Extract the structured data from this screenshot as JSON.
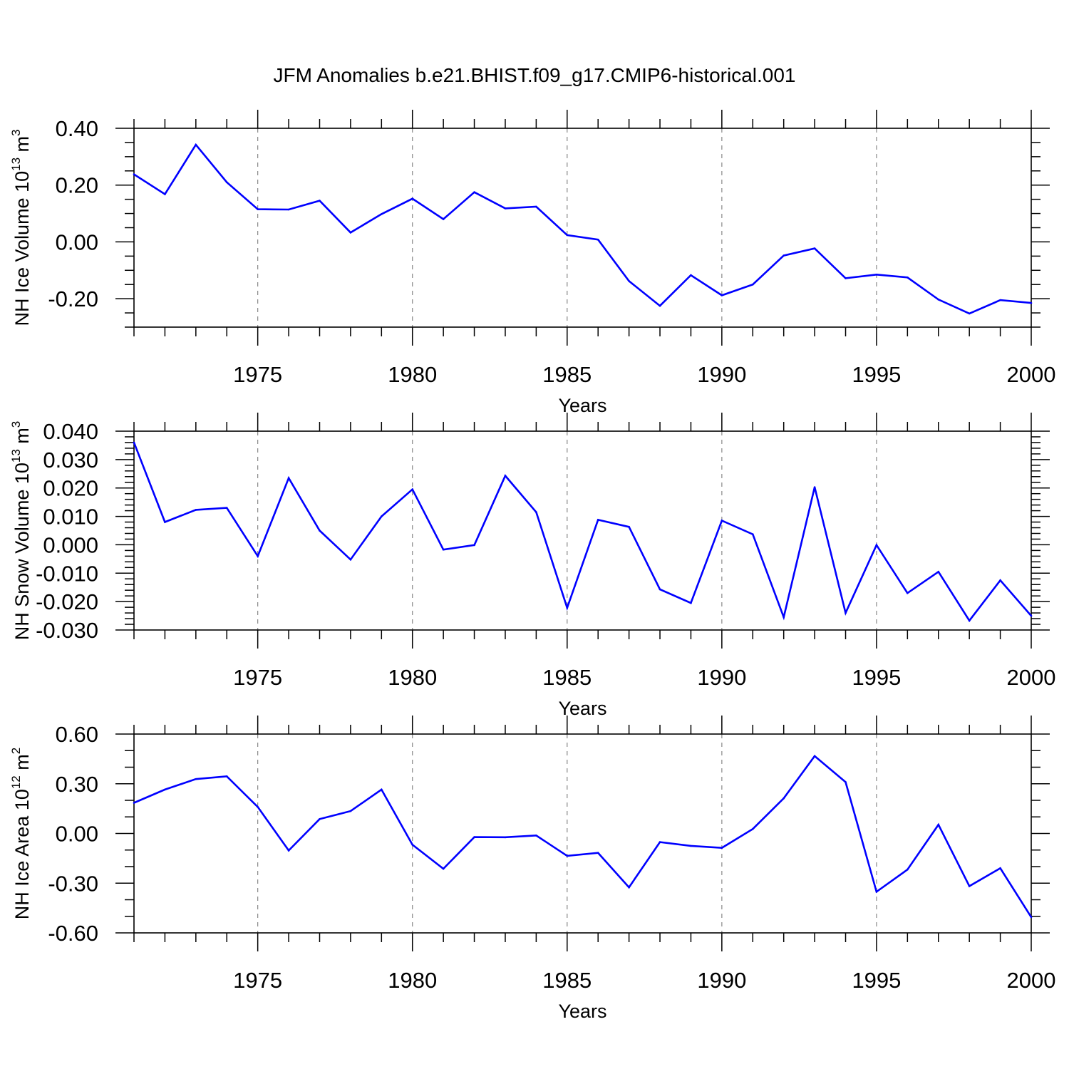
{
  "figure": {
    "title": "JFM Anomalies b.e21.BHIST.f09_g17.CMIP6-historical.001"
  },
  "chart_data": [
    {
      "type": "line",
      "id": "ice-volume",
      "ylabel": "NH Ice Volume 10",
      "ylabel_exp": "13",
      "ylabel_unit": " m",
      "ylabel_unit_exp": "3",
      "xlabel": "Years",
      "xlim": [
        1971,
        2000
      ],
      "ylim": [
        -0.3,
        0.4
      ],
      "yticks": [
        -0.2,
        0.0,
        0.2,
        0.4
      ],
      "ytick_labels": [
        "-0.20",
        "0.00",
        "0.20",
        "0.40"
      ],
      "yminor": 0.05,
      "xticks": [
        1975,
        1980,
        1985,
        1990,
        1995,
        2000
      ],
      "xtick_labels": [
        "1975",
        "1980",
        "1985",
        "1990",
        "1995",
        "2000"
      ],
      "gridlines_x": [
        1975,
        1980,
        1985,
        1990,
        1995
      ],
      "line_color": "#0000ff",
      "x": [
        1971,
        1972,
        1973,
        1974,
        1975,
        1976,
        1977,
        1978,
        1979,
        1980,
        1981,
        1982,
        1983,
        1984,
        1985,
        1986,
        1987,
        1988,
        1989,
        1990,
        1991,
        1992,
        1993,
        1994,
        1995,
        1996,
        1997,
        1998,
        1999,
        2000
      ],
      "y": [
        0.238,
        0.168,
        0.342,
        0.21,
        0.115,
        0.114,
        0.145,
        0.033,
        0.098,
        0.152,
        0.08,
        0.175,
        0.118,
        0.124,
        0.024,
        0.008,
        -0.138,
        -0.225,
        -0.117,
        -0.188,
        -0.15,
        -0.048,
        -0.023,
        -0.128,
        -0.115,
        -0.125,
        -0.203,
        -0.252,
        -0.205,
        -0.215
      ]
    },
    {
      "type": "line",
      "id": "snow-volume",
      "ylabel": "NH Snow Volume 10",
      "ylabel_exp": "13",
      "ylabel_unit": " m",
      "ylabel_unit_exp": "3",
      "xlabel": "Years",
      "xlim": [
        1971,
        2000
      ],
      "ylim": [
        -0.03,
        0.04
      ],
      "yticks": [
        -0.03,
        -0.02,
        -0.01,
        0.0,
        0.01,
        0.02,
        0.03,
        0.04
      ],
      "ytick_labels": [
        "-0.030",
        "-0.020",
        "-0.010",
        "0.000",
        "0.010",
        "0.020",
        "0.030",
        "0.040"
      ],
      "yminor": 0.002,
      "xticks": [
        1975,
        1980,
        1985,
        1990,
        1995,
        2000
      ],
      "xtick_labels": [
        "1975",
        "1980",
        "1985",
        "1990",
        "1995",
        "2000"
      ],
      "gridlines_x": [
        1975,
        1980,
        1985,
        1990,
        1995
      ],
      "line_color": "#0000ff",
      "x": [
        1971,
        1972,
        1973,
        1974,
        1975,
        1976,
        1977,
        1978,
        1979,
        1980,
        1981,
        1982,
        1983,
        1984,
        1985,
        1986,
        1987,
        1988,
        1989,
        1990,
        1991,
        1992,
        1993,
        1994,
        1995,
        1996,
        1997,
        1998,
        1999,
        2000
      ],
      "y": [
        0.036,
        0.008,
        0.0123,
        0.013,
        -0.004,
        0.0235,
        0.005,
        -0.0052,
        0.01,
        0.0195,
        -0.0017,
        -0.0001,
        0.0243,
        0.0115,
        -0.0222,
        0.0088,
        0.0063,
        -0.0157,
        -0.0205,
        0.0085,
        0.0037,
        -0.0255,
        0.0203,
        -0.024,
        -0.0001,
        -0.017,
        -0.0095,
        -0.0267,
        -0.0125,
        -0.025
      ]
    },
    {
      "type": "line",
      "id": "ice-area",
      "ylabel": "NH Ice Area 10",
      "ylabel_exp": "12",
      "ylabel_unit": " m",
      "ylabel_unit_exp": "2",
      "xlabel": "Years",
      "xlim": [
        1971,
        2000
      ],
      "ylim": [
        -0.6,
        0.6
      ],
      "yticks": [
        -0.6,
        -0.3,
        0.0,
        0.3,
        0.6
      ],
      "ytick_labels": [
        "-0.60",
        "-0.30",
        "0.00",
        "0.30",
        "0.60"
      ],
      "yminor": 0.1,
      "xticks": [
        1975,
        1980,
        1985,
        1990,
        1995,
        2000
      ],
      "xtick_labels": [
        "1975",
        "1980",
        "1985",
        "1990",
        "1995",
        "2000"
      ],
      "gridlines_x": [
        1975,
        1980,
        1985,
        1990,
        1995
      ],
      "line_color": "#0000ff",
      "x": [
        1971,
        1972,
        1973,
        1974,
        1975,
        1976,
        1977,
        1978,
        1979,
        1980,
        1981,
        1982,
        1983,
        1984,
        1985,
        1986,
        1987,
        1988,
        1989,
        1990,
        1991,
        1992,
        1993,
        1994,
        1995,
        1996,
        1997,
        1998,
        1999,
        2000
      ],
      "y": [
        0.185,
        0.265,
        0.328,
        0.345,
        0.16,
        -0.103,
        0.087,
        0.135,
        0.265,
        -0.068,
        -0.213,
        -0.022,
        -0.023,
        -0.012,
        -0.135,
        -0.117,
        -0.325,
        -0.052,
        -0.075,
        -0.087,
        0.027,
        0.212,
        0.467,
        0.31,
        -0.352,
        -0.218,
        0.053,
        -0.318,
        -0.21,
        -0.505
      ]
    }
  ]
}
